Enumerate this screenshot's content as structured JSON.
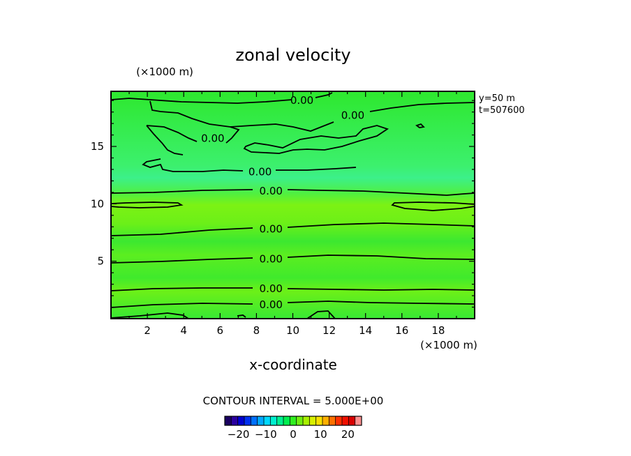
{
  "chart_data": {
    "type": "heatmap",
    "title": "zonal velocity",
    "xlabel": "x-coordinate",
    "x_unit": "(×1000 m)",
    "y_unit": "(×1000 m)",
    "xlim": [
      0,
      20
    ],
    "ylim": [
      0,
      19.8
    ],
    "x_ticks": [
      2,
      4,
      6,
      8,
      10,
      12,
      14,
      16,
      18
    ],
    "y_ticks": [
      5,
      10,
      15
    ],
    "info": [
      "y=50 m",
      "t=507600"
    ],
    "contour_interval_text": "CONTOUR INTERVAL = 5.000E+00",
    "contour_labels": [
      {
        "text": "0.00",
        "x": 10.5,
        "y": 19.0
      },
      {
        "text": "0.00",
        "x": 13.3,
        "y": 17.7
      },
      {
        "text": "0.00",
        "x": 5.6,
        "y": 15.7
      },
      {
        "text": "0.00",
        "x": 8.2,
        "y": 12.8
      },
      {
        "text": "0.00",
        "x": 8.8,
        "y": 11.1
      },
      {
        "text": "0.00",
        "x": 8.8,
        "y": 7.8
      },
      {
        "text": "0.00",
        "x": 8.8,
        "y": 5.2
      },
      {
        "text": "0.00",
        "x": 8.8,
        "y": 2.6
      },
      {
        "text": "0.00",
        "x": 8.8,
        "y": 1.2
      }
    ],
    "colorbar": {
      "range": [
        -25,
        25
      ],
      "tick_values": [
        -20,
        -10,
        0,
        10,
        20
      ],
      "tick_labels": [
        "−20",
        "−10",
        "0",
        "10",
        "20"
      ],
      "colors": [
        "#1a0060",
        "#2a00a0",
        "#0000d0",
        "#0030f0",
        "#0070ff",
        "#00a8ff",
        "#00d8ff",
        "#00f0d0",
        "#00f090",
        "#00ee50",
        "#30ee20",
        "#70ee10",
        "#a8f000",
        "#d8f000",
        "#f8e000",
        "#ffb000",
        "#ff7000",
        "#ff3000",
        "#f01000",
        "#d80000",
        "#ff9090"
      ]
    },
    "field_colors": {
      "base": "#2ee82e",
      "light": "#7cf214",
      "cyan": "#3cf08a"
    }
  }
}
